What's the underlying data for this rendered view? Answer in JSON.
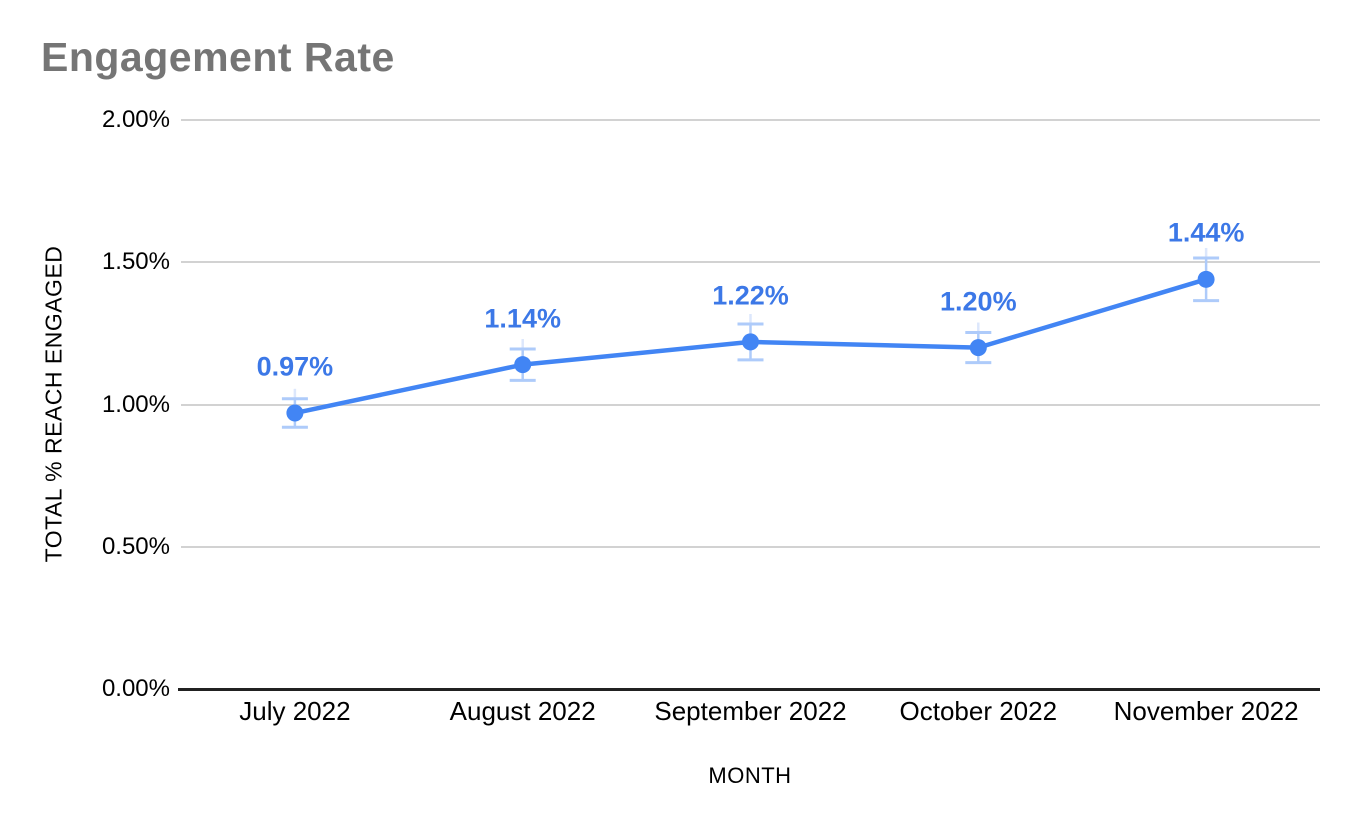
{
  "page": {
    "background": "#ffffff"
  },
  "chart": {
    "colors": {
      "title": "#757575",
      "series": "#4285f4",
      "data_label": "#3c78e7",
      "error_bar": "#aecbfa",
      "error_bar_faint": "#dce7fc",
      "gridline": "#d2d2d2",
      "axis_line": "#212121",
      "tick_text": "#000000"
    }
  },
  "chart_data": {
    "type": "line",
    "title": "Engagement Rate",
    "xlabel": "MONTH",
    "ylabel": "TOTAL % REACH ENGAGED",
    "categories": [
      "July 2022",
      "August 2022",
      "September 2022",
      "October 2022",
      "November 2022"
    ],
    "values": [
      0.97,
      1.14,
      1.22,
      1.2,
      1.44
    ],
    "data_labels": [
      "0.97%",
      "1.14%",
      "1.22%",
      "1.20%",
      "1.44%"
    ],
    "error_bars": true,
    "error_margins": [
      0.05,
      0.055,
      0.063,
      0.053,
      0.075
    ],
    "y_ticks": [
      {
        "value": 2.0,
        "label": "2.00%"
      },
      {
        "value": 1.5,
        "label": "1.50%"
      },
      {
        "value": 1.0,
        "label": "1.00%"
      },
      {
        "value": 0.5,
        "label": "0.50%"
      }
    ],
    "baseline_tick": {
      "value": 0.0,
      "label": "0.00%"
    },
    "ylim": [
      0,
      2.0
    ],
    "grid": true,
    "legend": "none",
    "marker": "circle"
  }
}
